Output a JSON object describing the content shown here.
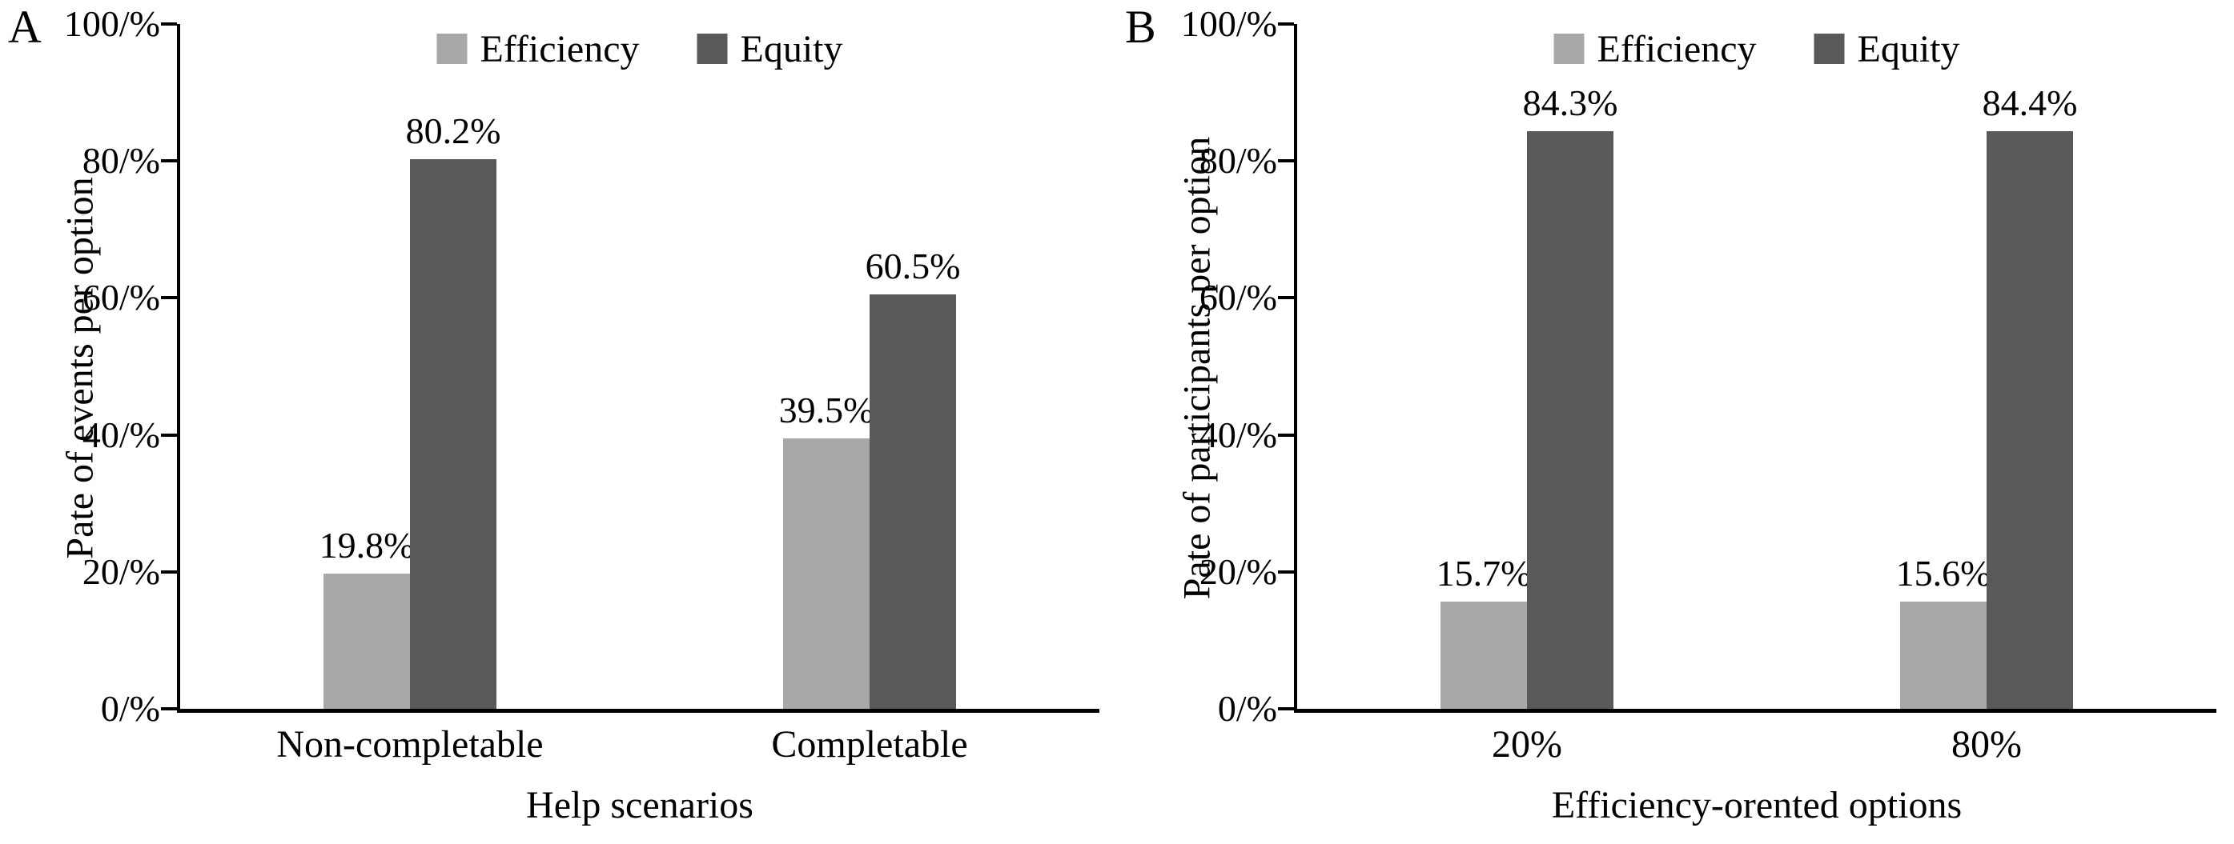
{
  "figure": {
    "background": "#ffffff",
    "text_color": "#000000",
    "axis_color": "#000000"
  },
  "colors": {
    "efficiency": "#a8a8a8",
    "equity": "#595959"
  },
  "chart_data": [
    {
      "type": "bar",
      "panel_label": "A",
      "xlabel": "Help scenarios",
      "ylabel": "Pate of events per option",
      "categories": [
        "Non-completable",
        "Completable"
      ],
      "series": [
        {
          "name": "Efficiency",
          "color": "#a8a8a8",
          "values": [
            19.8,
            39.5
          ],
          "value_labels": [
            "19.8%",
            "39.5%"
          ]
        },
        {
          "name": "Equity",
          "color": "#595959",
          "values": [
            80.2,
            60.5
          ],
          "value_labels": [
            "80.2%",
            "60.5%"
          ]
        }
      ],
      "ylim": [
        0,
        100
      ],
      "yticks": [
        {
          "value": 100,
          "label": "100/%"
        },
        {
          "value": 80,
          "label": "80/%"
        },
        {
          "value": 60,
          "label": "60/%"
        },
        {
          "value": 40,
          "label": "40/%"
        },
        {
          "value": 20,
          "label": "20/%"
        },
        {
          "value": 0,
          "label": "0/%"
        }
      ],
      "grid": false,
      "legend_position": "top-center"
    },
    {
      "type": "bar",
      "panel_label": "B",
      "xlabel": "Efficiency-orented options",
      "ylabel": "Pate of participants per option",
      "categories": [
        "20%",
        "80%"
      ],
      "series": [
        {
          "name": "Efficiency",
          "color": "#a8a8a8",
          "values": [
            15.7,
            15.6
          ],
          "value_labels": [
            "15.7%",
            "15.6%"
          ]
        },
        {
          "name": "Equity",
          "color": "#595959",
          "values": [
            84.3,
            84.4
          ],
          "value_labels": [
            "84.3%",
            "84.4%"
          ]
        }
      ],
      "ylim": [
        0,
        100
      ],
      "yticks": [
        {
          "value": 100,
          "label": "100/%"
        },
        {
          "value": 80,
          "label": "80/%"
        },
        {
          "value": 60,
          "label": "60/%"
        },
        {
          "value": 40,
          "label": "40/%"
        },
        {
          "value": 20,
          "label": "20/%"
        },
        {
          "value": 0,
          "label": "0/%"
        }
      ],
      "grid": false,
      "legend_position": "top-center"
    }
  ]
}
